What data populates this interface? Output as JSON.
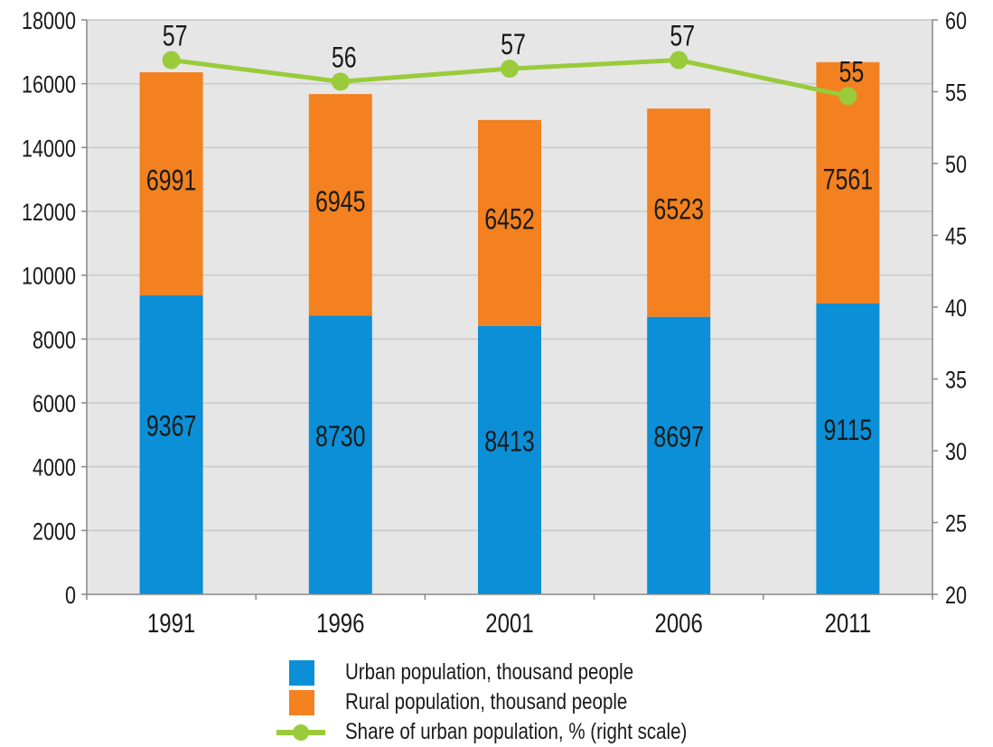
{
  "chart_data": {
    "type": "bar",
    "stacked": true,
    "categories": [
      "1991",
      "1996",
      "2001",
      "2006",
      "2011"
    ],
    "series": [
      {
        "name": "Urban population, thousand people",
        "values": [
          9367,
          8730,
          8413,
          8697,
          9115
        ],
        "color": "#0b8fd6",
        "axis": "left"
      },
      {
        "name": "Rural population, thousand people",
        "values": [
          6991,
          6945,
          6452,
          6523,
          7561
        ],
        "color": "#f38120",
        "axis": "left"
      },
      {
        "name": "Share of urban population, % (right scale)",
        "type": "line",
        "values": [
          57,
          56,
          57,
          57,
          55
        ],
        "color": "#9acb3b",
        "axis": "right"
      }
    ],
    "ylim_left": [
      0,
      18000
    ],
    "ylim_right": [
      20,
      60
    ],
    "yticks_left": [
      "0",
      "2000",
      "4000",
      "6000",
      "8000",
      "10000",
      "12000",
      "14000",
      "16000",
      "18000"
    ],
    "yticks_right": [
      "20",
      "25",
      "30",
      "35",
      "40",
      "45",
      "50",
      "55",
      "60"
    ],
    "line_positions": [
      57.2,
      55.7,
      56.6,
      57.2,
      54.7
    ],
    "grid": true,
    "background": "#e6e6e6",
    "legend_position": "bottom"
  },
  "legend": {
    "urban": "Urban population, thousand people",
    "rural": "Rural population, thousand people",
    "share": "Share of urban population, % (right scale)"
  }
}
